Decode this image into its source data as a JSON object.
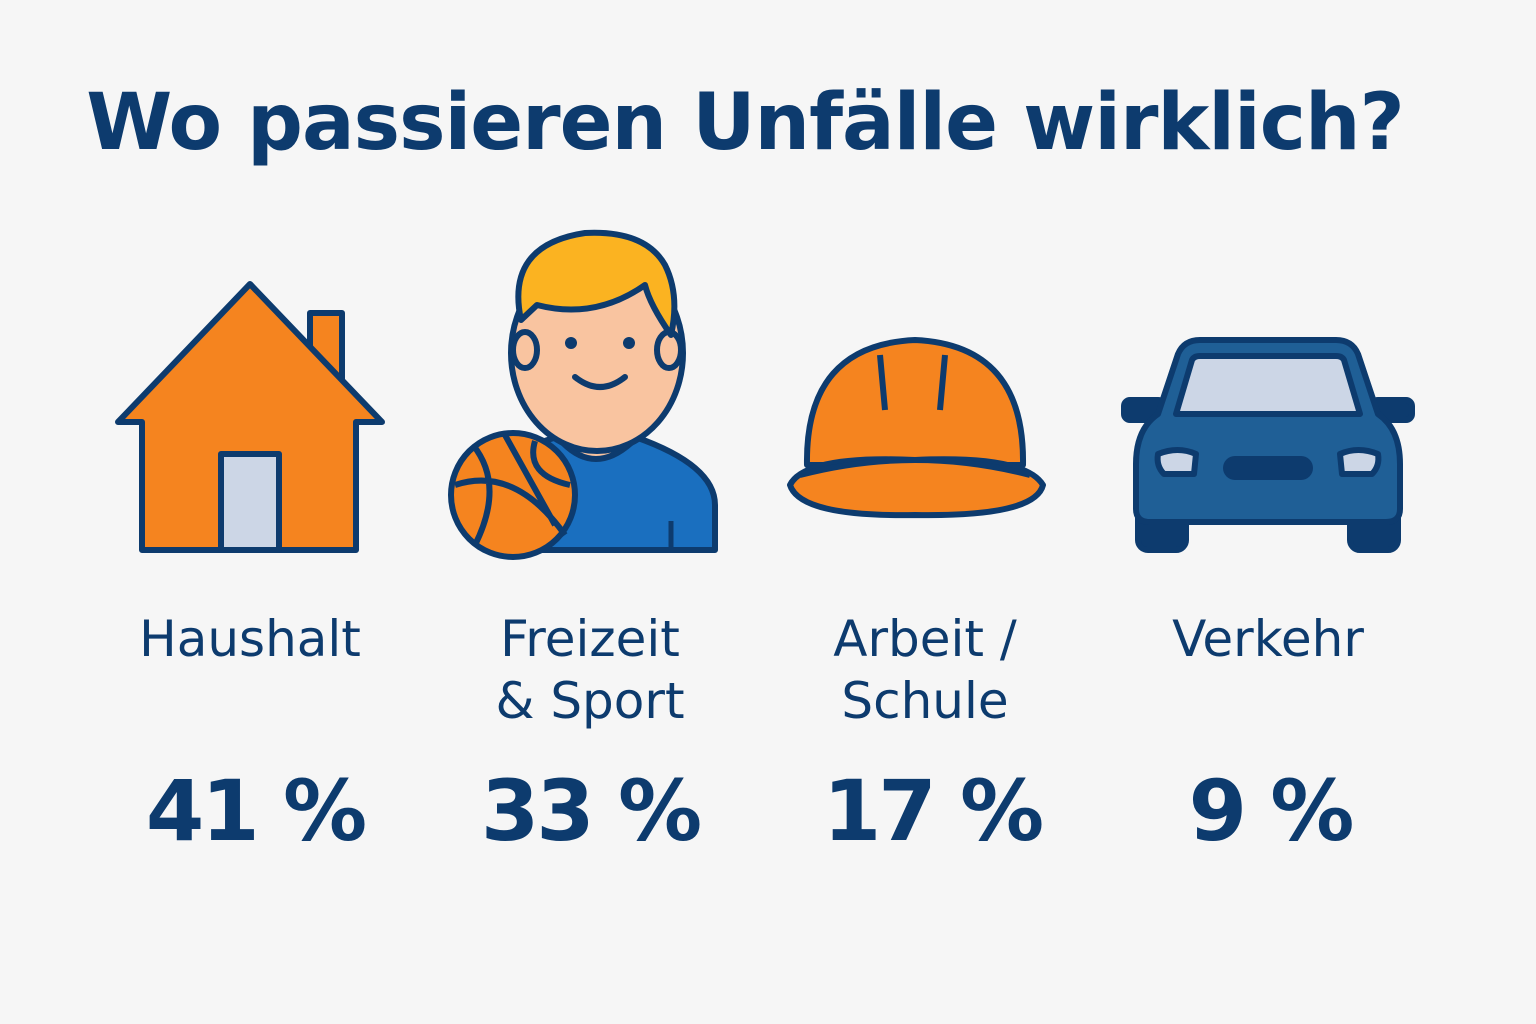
{
  "title": "Wo passieren Unfälle wirklich?",
  "colors": {
    "text": "#0d3b6e",
    "orange": "#f5841f",
    "blue": "#1a6fbf",
    "car": "#1f5f96",
    "background": "#f6f6f6"
  },
  "categories": [
    {
      "icon": "house-icon",
      "label_line1": "Haushalt",
      "label_line2": "",
      "value": "41 %"
    },
    {
      "icon": "person-basketball-icon",
      "label_line1": "Freizeit",
      "label_line2": "& Sport",
      "value": "33 %"
    },
    {
      "icon": "hard-hat-icon",
      "label_line1": "Arbeit /",
      "label_line2": "Schule",
      "value": "17 %"
    },
    {
      "icon": "car-icon",
      "label_line1": "Verkehr",
      "label_line2": "",
      "value": "9 %"
    }
  ]
}
